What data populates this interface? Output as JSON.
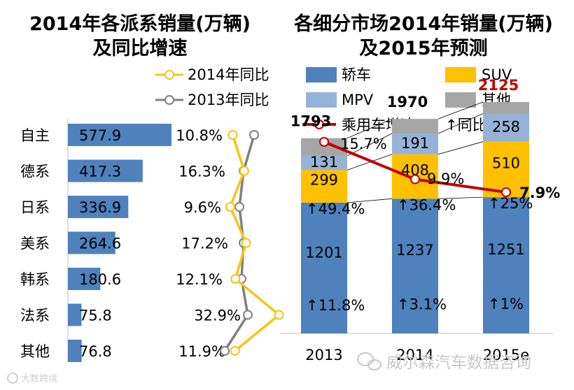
{
  "watermark": "威尔森汽车数据咨询",
  "watermark_small": "大数跨境",
  "colors": {
    "brand_bar": "#4f81bd",
    "yoy_2014": "#f6c417",
    "yoy_2013": "#808080",
    "sedan": "#4f81bd",
    "suv": "#ffc000",
    "mpv": "#95b3d7",
    "other": "#a6a6a6",
    "growth_line": "#c00000"
  },
  "chart_data": [
    {
      "type": "bar",
      "orientation": "horizontal",
      "title": "2014年各派系销量(万辆)\n及同比增速",
      "title_lines": [
        "2014年各派系销量(万辆)",
        "及同比增速"
      ],
      "categories": [
        "自主",
        "德系",
        "日系",
        "美系",
        "韩系",
        "法系",
        "其他"
      ],
      "values": [
        577.9,
        417.3,
        336.9,
        264.6,
        180.6,
        75.8,
        76.8
      ],
      "value_labels": [
        "577.9",
        "417.3",
        "336.9",
        "264.6",
        "180.6",
        "75.8",
        "76.8"
      ],
      "percent_labels": [
        "10.8%",
        "16.3%",
        "9.6%",
        "17.2%",
        "12.1%",
        "32.9%",
        "11.9%"
      ],
      "series": [
        {
          "name": "2014年同比",
          "values": [
            10.8,
            16.3,
            9.6,
            17.2,
            12.1,
            32.9,
            11.9
          ]
        },
        {
          "name": "2013年同比",
          "values": [
            21.0,
            16.0,
            14.0,
            16.0,
            15.0,
            18.0,
            7.0
          ]
        }
      ],
      "line_x_range": [
        0,
        40
      ],
      "grid": false
    },
    {
      "type": "bar",
      "stacked": true,
      "title": "各细分市场2014年销量(万辆)\n及2015年预测",
      "title_lines": [
        "各细分市场2014年销量(万辆)",
        "及2015年预测"
      ],
      "categories": [
        "2013",
        "2014",
        "2015e"
      ],
      "series": [
        {
          "name": "轿车",
          "values": [
            1201,
            1237,
            1251
          ],
          "growth_labels": [
            "↑11.8%",
            "↑3.1%",
            "↑1%"
          ]
        },
        {
          "name": "SUV",
          "values": [
            299,
            408,
            510
          ],
          "growth_labels": [
            "↑49.4%",
            "↑36.4%",
            "↑25%"
          ]
        },
        {
          "name": "MPV",
          "values": [
            131,
            191,
            258
          ]
        },
        {
          "name": "其他",
          "values": [
            162,
            134,
            106
          ]
        }
      ],
      "totals": [
        1793,
        1970,
        2125
      ],
      "line_series": {
        "name": "乘用车增速",
        "values": [
          15.7,
          9.9,
          7.9
        ],
        "labels": [
          "15.7%",
          "9.9%",
          "7.9%"
        ],
        "y_range": [
          0,
          20
        ]
      },
      "growth_legend": "↑同比增速",
      "ylim": [
        0,
        2600
      ],
      "grid": false
    }
  ]
}
